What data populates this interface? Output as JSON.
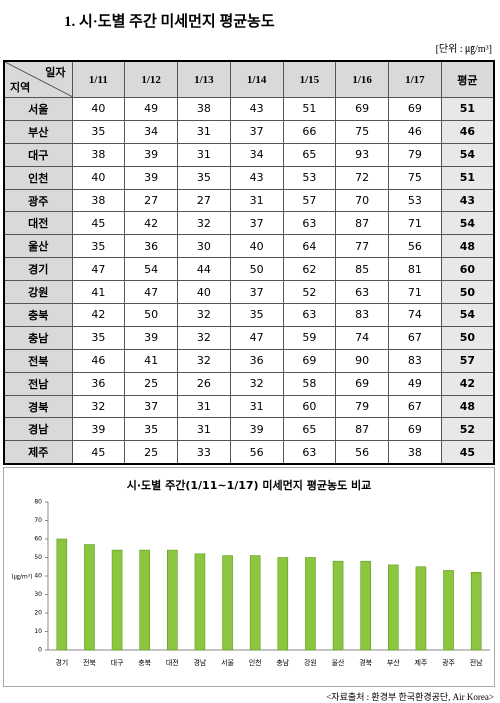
{
  "title": "1. 시·도별 주간 미세먼지 평균농도",
  "unit": "[단위 : ㎍/m³]",
  "table": {
    "corner_top": "일자",
    "corner_bottom": "지역",
    "columns": [
      "1/11",
      "1/12",
      "1/13",
      "1/14",
      "1/15",
      "1/16",
      "1/17",
      "평균"
    ],
    "rows": [
      {
        "region": "서울",
        "values": [
          40,
          49,
          38,
          43,
          51,
          69,
          69,
          51
        ]
      },
      {
        "region": "부산",
        "values": [
          35,
          34,
          31,
          37,
          66,
          75,
          46,
          46
        ]
      },
      {
        "region": "대구",
        "values": [
          38,
          39,
          31,
          34,
          65,
          93,
          79,
          54
        ]
      },
      {
        "region": "인천",
        "values": [
          40,
          39,
          35,
          43,
          53,
          72,
          75,
          51
        ]
      },
      {
        "region": "광주",
        "values": [
          38,
          27,
          27,
          31,
          57,
          70,
          53,
          43
        ]
      },
      {
        "region": "대전",
        "values": [
          45,
          42,
          32,
          37,
          63,
          87,
          71,
          54
        ]
      },
      {
        "region": "울산",
        "values": [
          35,
          36,
          30,
          40,
          64,
          77,
          56,
          48
        ]
      },
      {
        "region": "경기",
        "values": [
          47,
          54,
          44,
          50,
          62,
          85,
          81,
          60
        ]
      },
      {
        "region": "강원",
        "values": [
          41,
          47,
          40,
          37,
          52,
          63,
          71,
          50
        ]
      },
      {
        "region": "충북",
        "values": [
          42,
          50,
          32,
          35,
          63,
          83,
          74,
          54
        ]
      },
      {
        "region": "충남",
        "values": [
          35,
          39,
          32,
          47,
          59,
          74,
          67,
          50
        ]
      },
      {
        "region": "전북",
        "values": [
          46,
          41,
          32,
          36,
          69,
          90,
          83,
          57
        ]
      },
      {
        "region": "전남",
        "values": [
          36,
          25,
          26,
          32,
          58,
          69,
          49,
          42
        ]
      },
      {
        "region": "경북",
        "values": [
          32,
          37,
          31,
          31,
          60,
          79,
          67,
          48
        ]
      },
      {
        "region": "경남",
        "values": [
          39,
          35,
          31,
          39,
          65,
          87,
          69,
          52
        ]
      },
      {
        "region": "제주",
        "values": [
          45,
          25,
          33,
          56,
          63,
          56,
          38,
          45
        ]
      }
    ]
  },
  "chart_data": {
    "type": "bar",
    "title": "시·도별 주간(1/11~1/17) 미세먼지 평균농도 비교",
    "y_label": "(㎍/m³)",
    "categories": [
      "경기",
      "전북",
      "대구",
      "충북",
      "대전",
      "경남",
      "서울",
      "인천",
      "충남",
      "강원",
      "울산",
      "경북",
      "부산",
      "제주",
      "광주",
      "전남"
    ],
    "values": [
      60,
      57,
      54,
      54,
      54,
      52,
      51,
      51,
      50,
      50,
      48,
      48,
      46,
      45,
      43,
      42
    ],
    "color": "#8cc63e",
    "ylim": [
      0,
      80
    ],
    "yticks": [
      0,
      10,
      20,
      30,
      40,
      50,
      60,
      70,
      80
    ]
  },
  "source": "<자료출처 : 환경부 한국환경공단, Air Korea>"
}
